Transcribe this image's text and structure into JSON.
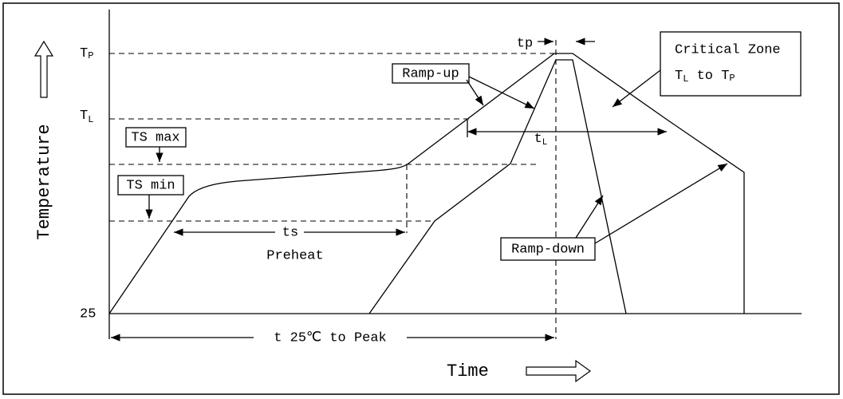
{
  "axis": {
    "y_title": "Temperature",
    "x_title": "Time"
  },
  "levels": {
    "tp": {
      "base": "T",
      "sub": "P"
    },
    "tl": {
      "base": "T",
      "sub": "L"
    },
    "ambient": "25"
  },
  "labels": {
    "ts_max": "TS max",
    "ts_min": "TS min",
    "ts": "ts",
    "preheat": "Preheat",
    "ramp_up": "Ramp-up",
    "ramp_down": "Ramp-down",
    "tp_small": "tp",
    "tl_small": {
      "base": "t",
      "sub": "L"
    },
    "t25": "t 25℃ to Peak"
  },
  "critical_zone": {
    "line1": "Critical Zone",
    "line2": {
      "base1": "T",
      "sub1": "L",
      "mid": " to ",
      "base2": "T",
      "sub2": "P"
    }
  }
}
